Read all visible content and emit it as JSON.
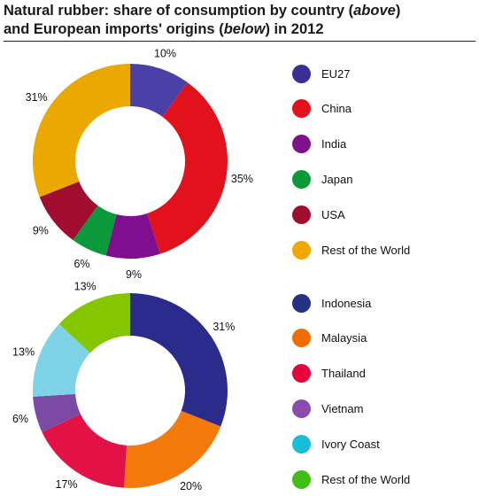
{
  "title": {
    "line1_a": "Natural rubber: share of consumption by country (",
    "line1_em": "above",
    "line1_b": ")",
    "line2_a": "and European imports' origins (",
    "line2_em": "below",
    "line2_b": ") in 2012"
  },
  "chart_data": [
    {
      "type": "pie",
      "donut": true,
      "categories": [
        "EU27",
        "China",
        "India",
        "Japan",
        "USA",
        "Rest of the World"
      ],
      "values": [
        10,
        35,
        9,
        6,
        9,
        31
      ],
      "data_labels": [
        "10%",
        "35%",
        "9%",
        "6%",
        "9%",
        "31%"
      ],
      "colors": [
        "#4b3fa8",
        "#e3111b",
        "#7f0f8e",
        "#0a9a3c",
        "#a10d2e",
        "#eaa800"
      ],
      "legend_colors": [
        "#3a2f96",
        "#e3111b",
        "#7d128c",
        "#0a9a3c",
        "#a10d2e",
        "#f0a800"
      ],
      "legend_position": "right"
    },
    {
      "type": "pie",
      "donut": true,
      "categories": [
        "Indonesia",
        "Malaysia",
        "Thailand",
        "Vietnam",
        "Ivory Coast",
        "Rest of the World"
      ],
      "values": [
        31,
        20,
        17,
        6,
        13,
        13
      ],
      "data_labels": [
        "31%",
        "20%",
        "17%",
        "6%",
        "13%",
        "13%"
      ],
      "colors": [
        "#2a2b8a",
        "#f47a0c",
        "#e31246",
        "#7c4aa6",
        "#7fd3e7",
        "#84c700"
      ],
      "legend_colors": [
        "#233283",
        "#f26d00",
        "#e8003d",
        "#8a4cad",
        "#17bfd6",
        "#3fbf14"
      ],
      "legend_position": "right"
    }
  ]
}
